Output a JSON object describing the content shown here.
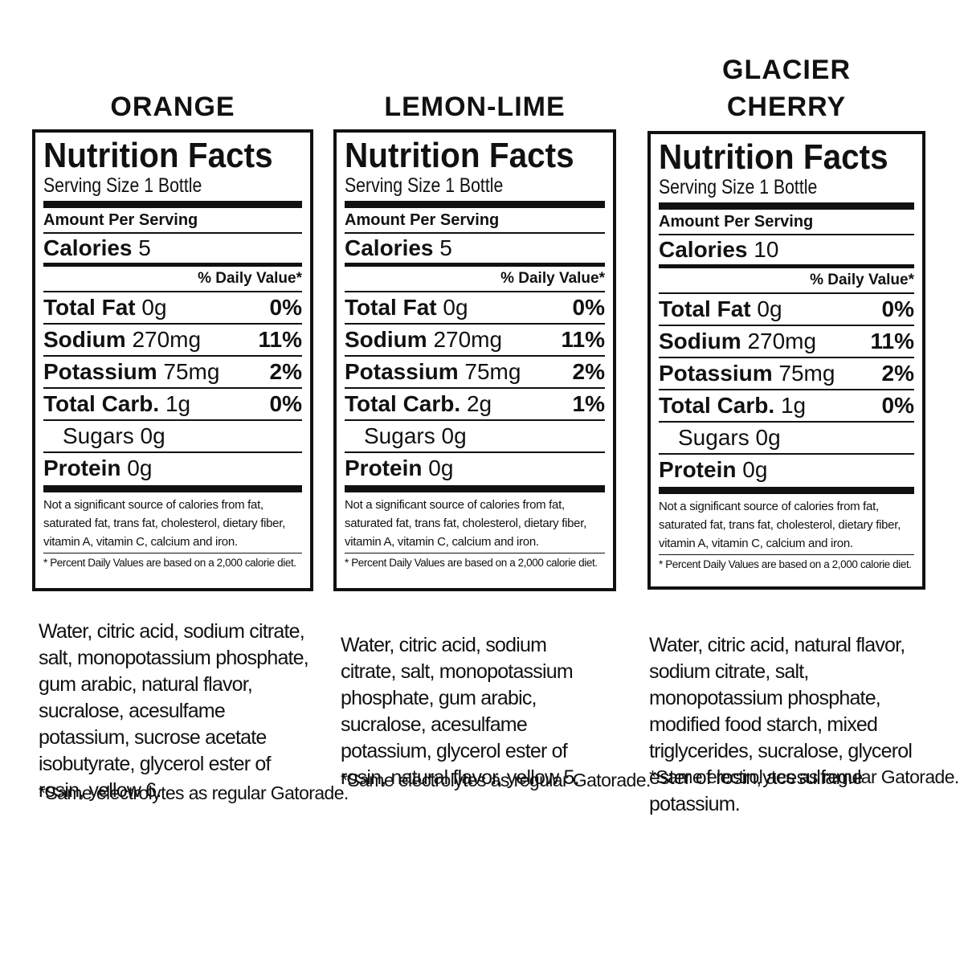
{
  "labels": [
    {
      "flavor": "ORANGE",
      "heading": "Nutrition Facts",
      "serving": "Serving Size 1 Bottle",
      "amount_per_serving": "Amount Per Serving",
      "calories_label": "Calories",
      "calories_value": "5",
      "daily_value_header": "% Daily Value*",
      "nutrients": [
        {
          "name": "Total Fat",
          "amount": "0g",
          "pct": "0%"
        },
        {
          "name": "Sodium",
          "amount": "270mg",
          "pct": "11%"
        },
        {
          "name": "Potassium",
          "amount": "75mg",
          "pct": "2%"
        },
        {
          "name": "Total Carb.",
          "amount": "1g",
          "pct": "0%"
        },
        {
          "name": "Sugars",
          "amount": "0g",
          "pct": ""
        },
        {
          "name": "Protein",
          "amount": "0g",
          "pct": ""
        }
      ],
      "footnote": "Not a significant source of calories from fat, saturated fat, trans fat, cholesterol, dietary fiber, vitamin A, vitamin C, calcium and iron.",
      "daily_value_note": "* Percent Daily Values are based on a 2,000 calorie diet.",
      "ingredients": "Water, citric acid, sodium citrate, salt, monopotassium phosphate, gum arabic, natural flavor, sucralose, acesulfame potassium, sucrose acetate isobutyrate, glycerol ester of rosin, yellow 6.",
      "note": "*Same electrolytes as regular Gatorade."
    },
    {
      "flavor": "LEMON-LIME",
      "heading": "Nutrition Facts",
      "serving": "Serving Size 1 Bottle",
      "amount_per_serving": "Amount Per Serving",
      "calories_label": "Calories",
      "calories_value": "5",
      "daily_value_header": "% Daily Value*",
      "nutrients": [
        {
          "name": "Total Fat",
          "amount": "0g",
          "pct": "0%"
        },
        {
          "name": "Sodium",
          "amount": "270mg",
          "pct": "11%"
        },
        {
          "name": "Potassium",
          "amount": "75mg",
          "pct": "2%"
        },
        {
          "name": "Total Carb.",
          "amount": "2g",
          "pct": "1%"
        },
        {
          "name": "Sugars",
          "amount": "0g",
          "pct": ""
        },
        {
          "name": "Protein",
          "amount": "0g",
          "pct": ""
        }
      ],
      "footnote": "Not a significant source of calories from fat, saturated fat, trans fat, cholesterol, dietary fiber, vitamin A, vitamin C, calcium and iron.",
      "daily_value_note": "* Percent Daily Values are based on a 2,000 calorie diet.",
      "ingredients": "Water, citric acid, sodium citrate, salt, monopotassium phosphate, gum arabic, sucralose, acesulfame potassium, glycerol ester of rosin, natural flavor, yellow 5.",
      "note": "*Same electrolytes as regular Gatorade."
    },
    {
      "flavor": "GLACIER\nCHERRY",
      "heading": "Nutrition Facts",
      "serving": "Serving Size 1 Bottle",
      "amount_per_serving": "Amount Per Serving",
      "calories_label": "Calories",
      "calories_value": "10",
      "daily_value_header": "% Daily Value*",
      "nutrients": [
        {
          "name": "Total Fat",
          "amount": "0g",
          "pct": "0%"
        },
        {
          "name": "Sodium",
          "amount": "270mg",
          "pct": "11%"
        },
        {
          "name": "Potassium",
          "amount": "75mg",
          "pct": "2%"
        },
        {
          "name": "Total Carb.",
          "amount": "1g",
          "pct": "0%"
        },
        {
          "name": "Sugars",
          "amount": "0g",
          "pct": ""
        },
        {
          "name": "Protein",
          "amount": "0g",
          "pct": ""
        }
      ],
      "footnote": "Not a significant source of calories from fat, saturated fat, trans fat, cholesterol, dietary fiber, vitamin A, vitamin C, calcium and iron.",
      "daily_value_note": "* Percent Daily Values are based on a 2,000 calorie diet.",
      "ingredients": "Water, citric acid, natural flavor, sodium citrate, salt, monopotassium phosphate, modified food starch, mixed triglycerides, sucralose, glycerol ester of rosin, acesulfame potassium.",
      "note": "*Same electrolytes as regular Gatorade."
    }
  ]
}
